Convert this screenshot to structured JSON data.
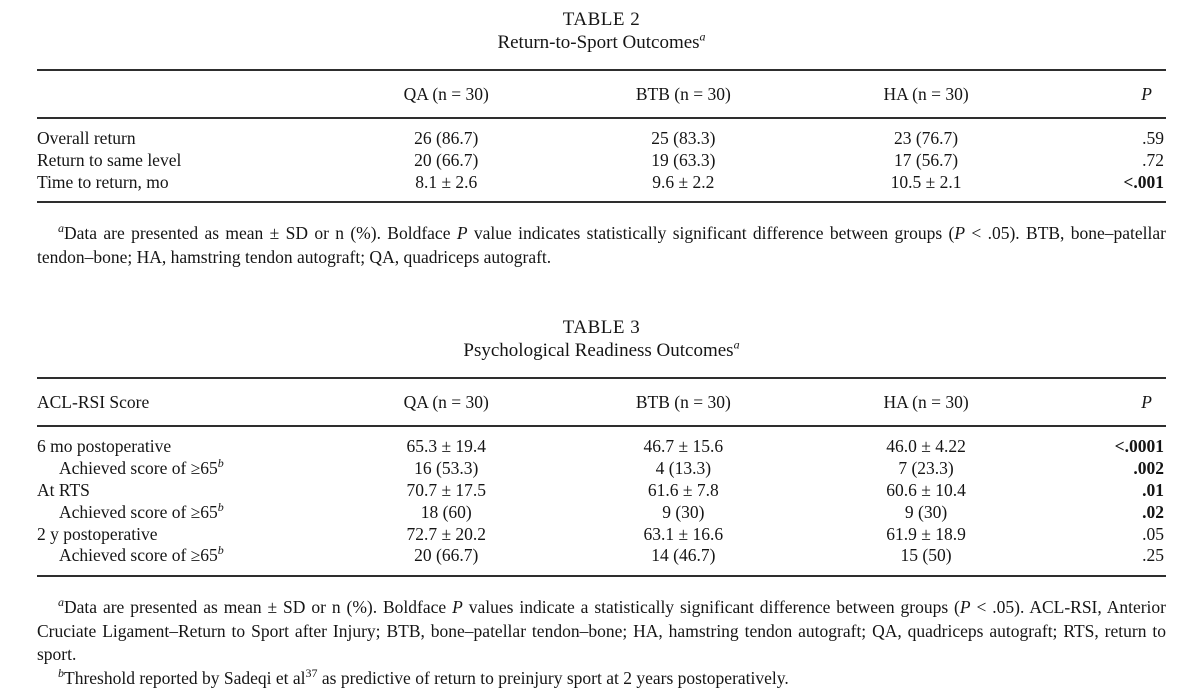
{
  "page": {
    "background": "#ffffff",
    "text_color": "#151515",
    "rule_color": "#2e2e2e"
  },
  "table2": {
    "number": "TABLE 2",
    "title": "Return-to-Sport Outcomes",
    "title_marker": "a",
    "columns": [
      {
        "label": "",
        "align": "left"
      },
      {
        "label": "QA (n = 30)",
        "align": "center"
      },
      {
        "label": "BTB (n = 30)",
        "align": "center"
      },
      {
        "label": "HA (n = 30)",
        "align": "center"
      },
      {
        "label": "P",
        "align": "right",
        "italic": true
      }
    ],
    "rows": [
      {
        "label": "Overall return",
        "indent": false,
        "values": [
          "26 (86.7)",
          "25 (83.3)",
          "23 (76.7)"
        ],
        "p": ".59",
        "p_bold": false
      },
      {
        "label": "Return to same level",
        "indent": false,
        "values": [
          "20 (66.7)",
          "19 (63.3)",
          "17 (56.7)"
        ],
        "p": ".72",
        "p_bold": false
      },
      {
        "label": "Time to return, mo",
        "indent": false,
        "values": [
          "8.1 ± 2.6",
          "9.6 ± 2.2",
          "10.5 ± 2.1"
        ],
        "p": "<.001",
        "p_bold": true
      }
    ],
    "footnotes": [
      {
        "marker": "a",
        "segments": [
          {
            "text": "Data are presented as mean ± SD or n (%). Boldface "
          },
          {
            "text": "P",
            "italic": true
          },
          {
            "text": " value indicates statistically significant difference between groups ("
          },
          {
            "text": "P",
            "italic": true
          },
          {
            "text": " < .05). BTB, bone–patellar tendon–bone; HA, hamstring tendon autograft; QA, quadriceps autograft."
          }
        ]
      }
    ]
  },
  "table3": {
    "number": "TABLE 3",
    "title": "Psychological Readiness Outcomes",
    "title_marker": "a",
    "columns": [
      {
        "label": "ACL-RSI Score",
        "align": "left"
      },
      {
        "label": "QA (n = 30)",
        "align": "center"
      },
      {
        "label": "BTB (n = 30)",
        "align": "center"
      },
      {
        "label": "HA (n = 30)",
        "align": "center"
      },
      {
        "label": "P",
        "align": "right",
        "italic": true
      }
    ],
    "rows": [
      {
        "label": "6 mo postoperative",
        "indent": false,
        "values": [
          "65.3 ± 19.4",
          "46.7 ± 15.6",
          "46.0 ± 4.22"
        ],
        "p": "<.0001",
        "p_bold": true
      },
      {
        "label": "Achieved score of ≥65",
        "label_sup": "b",
        "indent": true,
        "values": [
          "16 (53.3)",
          "4 (13.3)",
          "7 (23.3)"
        ],
        "p": ".002",
        "p_bold": true
      },
      {
        "label": "At RTS",
        "indent": false,
        "values": [
          "70.7 ± 17.5",
          "61.6 ± 7.8",
          "60.6 ± 10.4"
        ],
        "p": ".01",
        "p_bold": true
      },
      {
        "label": "Achieved score of ≥65",
        "label_sup": "b",
        "indent": true,
        "values": [
          "18 (60)",
          "9 (30)",
          "9 (30)"
        ],
        "p": ".02",
        "p_bold": true
      },
      {
        "label": "2 y postoperative",
        "indent": false,
        "values": [
          "72.7 ± 20.2",
          "63.1 ± 16.6",
          "61.9 ± 18.9"
        ],
        "p": ".05",
        "p_bold": false
      },
      {
        "label": "Achieved score of ≥65",
        "label_sup": "b",
        "indent": true,
        "values": [
          "20 (66.7)",
          "14 (46.7)",
          "15 (50)"
        ],
        "p": ".25",
        "p_bold": false
      }
    ],
    "footnotes": [
      {
        "marker": "a",
        "segments": [
          {
            "text": "Data are presented as mean ± SD or n (%). Boldface "
          },
          {
            "text": "P",
            "italic": true
          },
          {
            "text": " values indicate a statistically significant difference between groups ("
          },
          {
            "text": "P",
            "italic": true
          },
          {
            "text": " < .05). ACL-RSI, Anterior Cruciate Ligament–Return to Sport after Injury; BTB, bone–patellar tendon–bone; HA, hamstring tendon autograft; QA, quadriceps autograft; RTS, return to sport."
          }
        ]
      },
      {
        "marker": "b",
        "segments": [
          {
            "text": "Threshold reported by Sadeqi et al"
          },
          {
            "text": "37",
            "sup": true
          },
          {
            "text": " as predictive of return to preinjury sport at 2 years postoperatively."
          }
        ]
      }
    ]
  }
}
